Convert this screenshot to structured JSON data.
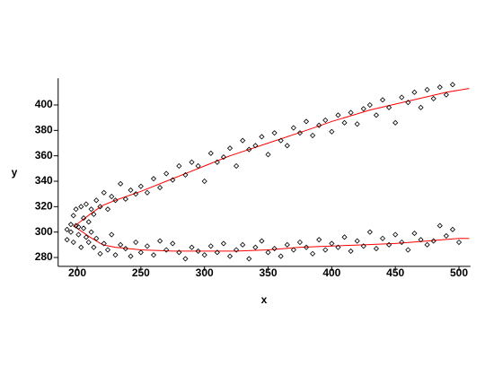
{
  "chart_data": {
    "type": "scatter",
    "xlabel": "x",
    "ylabel": "y",
    "xlim": [
      185,
      509
    ],
    "ylim": [
      273,
      421
    ],
    "xticks": [
      200,
      250,
      300,
      350,
      400,
      450,
      500
    ],
    "yticks": [
      280,
      300,
      320,
      340,
      360,
      380,
      400
    ],
    "marker_color": "#000000",
    "x": [
      192,
      195,
      197,
      199,
      201,
      203,
      205,
      207,
      209,
      211,
      213,
      215,
      218,
      221,
      224,
      227,
      230,
      234,
      238,
      242,
      246,
      250,
      255,
      260,
      265,
      270,
      275,
      280,
      285,
      290,
      295,
      300,
      305,
      310,
      315,
      320,
      325,
      330,
      335,
      340,
      345,
      350,
      355,
      360,
      365,
      370,
      375,
      380,
      385,
      390,
      395,
      400,
      405,
      410,
      415,
      420,
      425,
      430,
      435,
      440,
      445,
      450,
      455,
      460,
      465,
      470,
      475,
      480,
      485,
      490,
      495,
      192,
      195,
      197,
      199,
      201,
      203,
      205,
      207,
      209,
      211,
      213,
      215,
      218,
      221,
      224,
      227,
      230,
      234,
      238,
      242,
      246,
      250,
      255,
      260,
      265,
      270,
      275,
      280,
      285,
      290,
      295,
      300,
      305,
      310,
      315,
      320,
      325,
      330,
      335,
      340,
      345,
      350,
      355,
      360,
      365,
      370,
      375,
      380,
      385,
      390,
      395,
      400,
      405,
      410,
      415,
      420,
      425,
      430,
      435,
      440,
      445,
      450,
      455,
      460,
      465,
      470,
      475,
      480,
      485,
      490,
      495,
      500
    ],
    "y": [
      302,
      306,
      313,
      318,
      304,
      320,
      311,
      322,
      308,
      318,
      314,
      325,
      320,
      331,
      318,
      328,
      325,
      338,
      326,
      333,
      330,
      336,
      331,
      342,
      335,
      346,
      341,
      352,
      345,
      355,
      352,
      340,
      362,
      355,
      359,
      366,
      352,
      372,
      365,
      368,
      375,
      361,
      378,
      372,
      368,
      382,
      378,
      387,
      376,
      384,
      388,
      379,
      392,
      386,
      394,
      385,
      397,
      400,
      392,
      404,
      398,
      386,
      406,
      402,
      410,
      398,
      412,
      405,
      414,
      408,
      416,
      294,
      300,
      292,
      305,
      298,
      288,
      303,
      296,
      292,
      300,
      288,
      295,
      283,
      291,
      286,
      298,
      282,
      290,
      287,
      281,
      292,
      284,
      289,
      282,
      293,
      286,
      291,
      284,
      279,
      288,
      285,
      282,
      289,
      284,
      291,
      281,
      286,
      290,
      279,
      288,
      293,
      284,
      287,
      281,
      290,
      286,
      292,
      288,
      283,
      294,
      286,
      291,
      288,
      296,
      285,
      293,
      289,
      300,
      287,
      295,
      290,
      298,
      292,
      286,
      299,
      294,
      290,
      293,
      305,
      297,
      302,
      292
    ],
    "curves": [
      {
        "color": "#ff0000",
        "x": [
          197,
          210,
          220,
          230,
          250,
          270,
          290,
          300,
          320,
          350,
          380,
          400,
          430,
          460,
          490,
          508
        ],
        "y": [
          304,
          314,
          321,
          325,
          332,
          340,
          348,
          352,
          360,
          370,
          380,
          387,
          396,
          403,
          410,
          413
        ]
      },
      {
        "color": "#ff0000",
        "x": [
          197,
          210,
          220,
          230,
          250,
          275,
          300,
          325,
          350,
          375,
          400,
          425,
          450,
          475,
          500,
          508
        ],
        "y": [
          305,
          296,
          290,
          288,
          286,
          285,
          285,
          285,
          286,
          288,
          289,
          290,
          291,
          293,
          295,
          295
        ]
      }
    ]
  }
}
